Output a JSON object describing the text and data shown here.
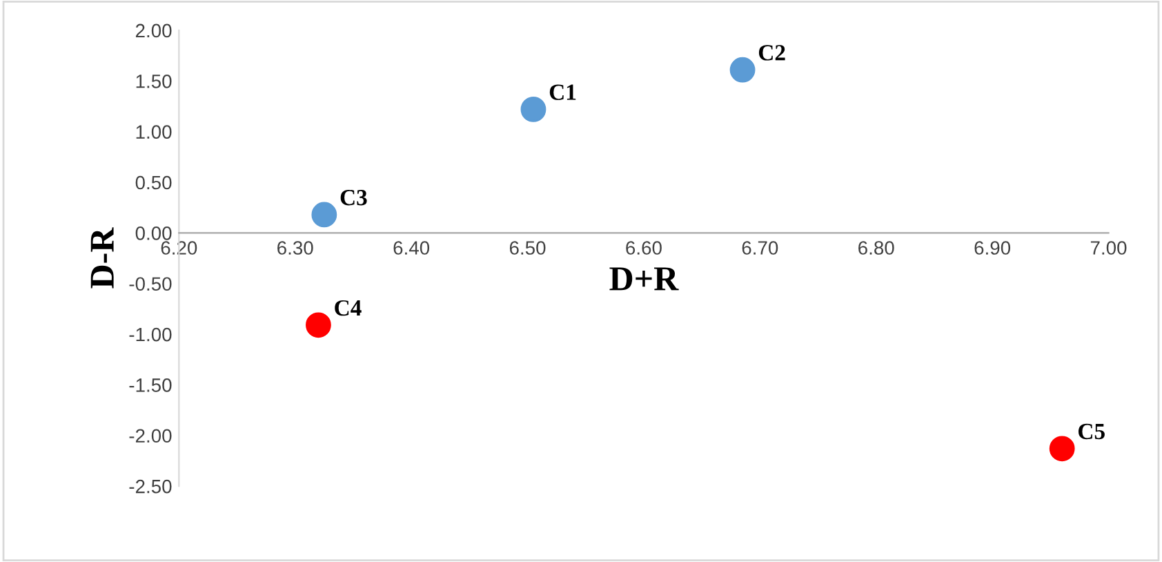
{
  "chart_data": {
    "type": "scatter",
    "xlabel": "D+R",
    "ylabel": "D-R",
    "series": [
      {
        "x": [
          6.505,
          6.685,
          6.325,
          6.32,
          6.96
        ],
        "values": [
          1.22,
          1.61,
          0.18,
          -0.91,
          -2.13
        ],
        "colors": [
          "#5b9bd5",
          "#5b9bd5",
          "#5b9bd5",
          "#ff0000",
          "#ff0000"
        ]
      }
    ],
    "annotations": [
      {
        "text": "C1",
        "x": 6.505,
        "y": 1.22
      },
      {
        "text": "C2",
        "x": 6.685,
        "y": 1.61
      },
      {
        "text": "C3",
        "x": 6.325,
        "y": 0.18
      },
      {
        "text": "C4",
        "x": 6.32,
        "y": -0.91
      },
      {
        "text": "C5",
        "x": 6.96,
        "y": -2.13
      }
    ],
    "xlim": [
      6.2,
      7.0
    ],
    "xticks": [
      {
        "value": 6.2,
        "label": "6.20"
      },
      {
        "value": 6.3,
        "label": "6.30"
      },
      {
        "value": 6.4,
        "label": "6.40"
      },
      {
        "value": 6.5,
        "label": "6.50"
      },
      {
        "value": 6.6,
        "label": "6.60"
      },
      {
        "value": 6.7,
        "label": "6.70"
      },
      {
        "value": 6.8,
        "label": "6.80"
      },
      {
        "value": 6.9,
        "label": "6.90"
      },
      {
        "value": 7.0,
        "label": "7.00"
      }
    ],
    "ylim": [
      -2.5,
      2.0
    ],
    "yticks": [
      {
        "value": -2.5,
        "label": "-2.50"
      },
      {
        "value": -2.0,
        "label": "-2.00"
      },
      {
        "value": -1.5,
        "label": "-1.50"
      },
      {
        "value": -1.0,
        "label": "-1.00"
      },
      {
        "value": -0.5,
        "label": "-0.50"
      },
      {
        "value": 0,
        "label": "0.00"
      },
      {
        "value": 0.5,
        "label": "0.50"
      },
      {
        "value": 1.0,
        "label": "1.00"
      },
      {
        "value": 1.5,
        "label": "1.50"
      },
      {
        "value": 2.0,
        "label": "2.00"
      }
    ],
    "grid": false,
    "legend": false,
    "marker": "circle"
  }
}
